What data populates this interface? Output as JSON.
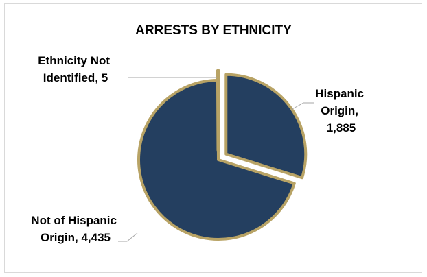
{
  "chart_data": {
    "type": "pie",
    "title": "ARRESTS BY ETHNICITY",
    "slices": [
      {
        "label": "Hispanic Origin",
        "value": 1885,
        "value_text": "1,885",
        "exploded": true
      },
      {
        "label": "Not of Hispanic Origin",
        "value": 4435,
        "value_text": "4,435",
        "exploded": false
      },
      {
        "label": "Ethnicity Not Identified",
        "value": 5,
        "value_text": "5",
        "exploded": true
      }
    ],
    "data_labels": {
      "hispanic": [
        "Hispanic",
        "Origin,",
        "1,885"
      ],
      "not_hispanic": [
        "Not of Hispanic",
        "Origin, 4,435"
      ],
      "not_identified": [
        "Ethnicity Not",
        "Identified, 5"
      ]
    },
    "colors": {
      "fill": "#243f60",
      "border": "#b8a365",
      "leader": "#a6a6a6"
    },
    "legend": "none"
  }
}
